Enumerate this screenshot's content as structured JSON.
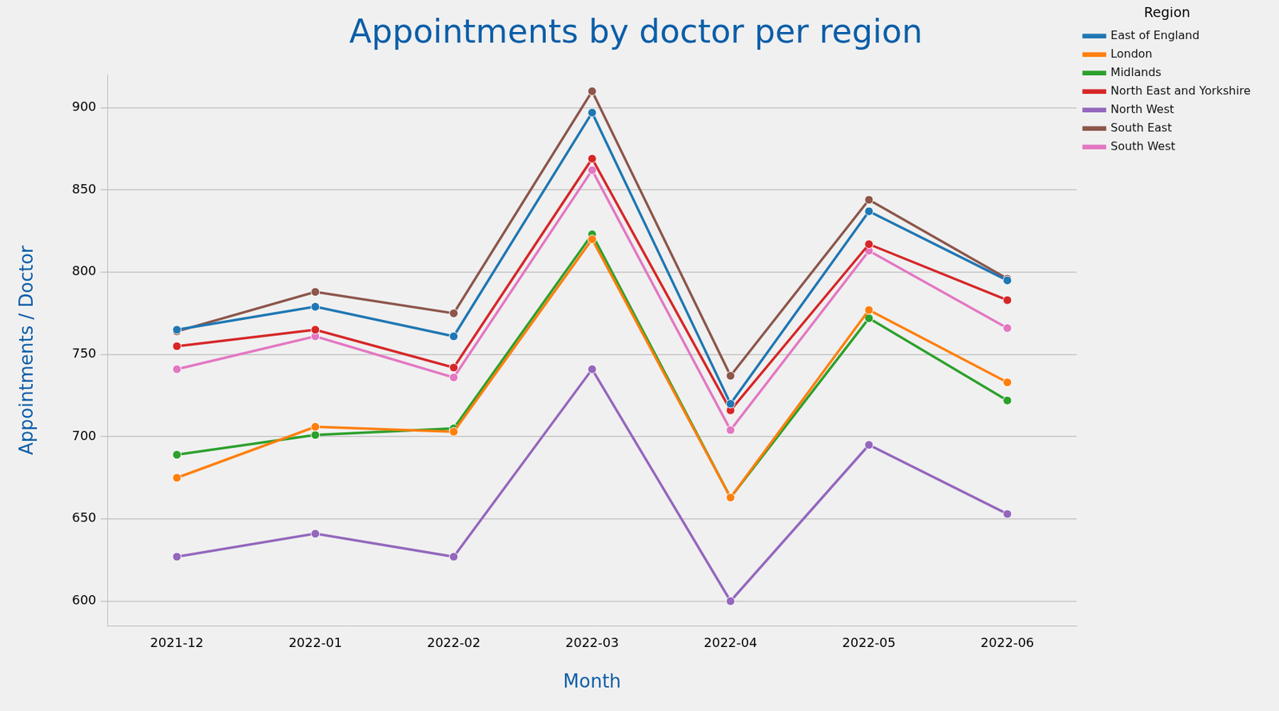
{
  "chart_data": {
    "type": "line",
    "title": "Appointments by doctor per region",
    "x_label": "Month",
    "y_label": "Appointments / Doctor",
    "x": [
      "2021-12",
      "2022-01",
      "2022-02",
      "2022-03",
      "2022-04",
      "2022-05",
      "2022-06"
    ],
    "series": [
      {
        "name": "East of England",
        "color": "#1f77b4",
        "values": [
          765,
          779,
          761,
          897,
          720,
          837,
          795
        ]
      },
      {
        "name": "London",
        "color": "#ff7f0e",
        "values": [
          675,
          706,
          703,
          820,
          663,
          777,
          733
        ]
      },
      {
        "name": "Midlands",
        "color": "#2ca02c",
        "values": [
          689,
          701,
          705,
          823,
          663,
          772,
          722
        ]
      },
      {
        "name": "North East and Yorkshire",
        "color": "#d62728",
        "values": [
          755,
          765,
          742,
          869,
          716,
          817,
          783
        ]
      },
      {
        "name": "North West",
        "color": "#9467bd",
        "values": [
          627,
          641,
          627,
          741,
          600,
          695,
          653
        ]
      },
      {
        "name": "South East",
        "color": "#8c564b",
        "values": [
          764,
          788,
          775,
          910,
          737,
          844,
          796
        ]
      },
      {
        "name": "South West",
        "color": "#e377c2",
        "values": [
          741,
          761,
          736,
          862,
          704,
          813,
          766
        ]
      }
    ],
    "ylim": [
      585,
      920
    ],
    "yticks": [
      600,
      650,
      700,
      750,
      800,
      850,
      900
    ],
    "grid": true,
    "legend": "right",
    "legend_title": "Region",
    "marker": "circle",
    "line_style": "solid"
  }
}
